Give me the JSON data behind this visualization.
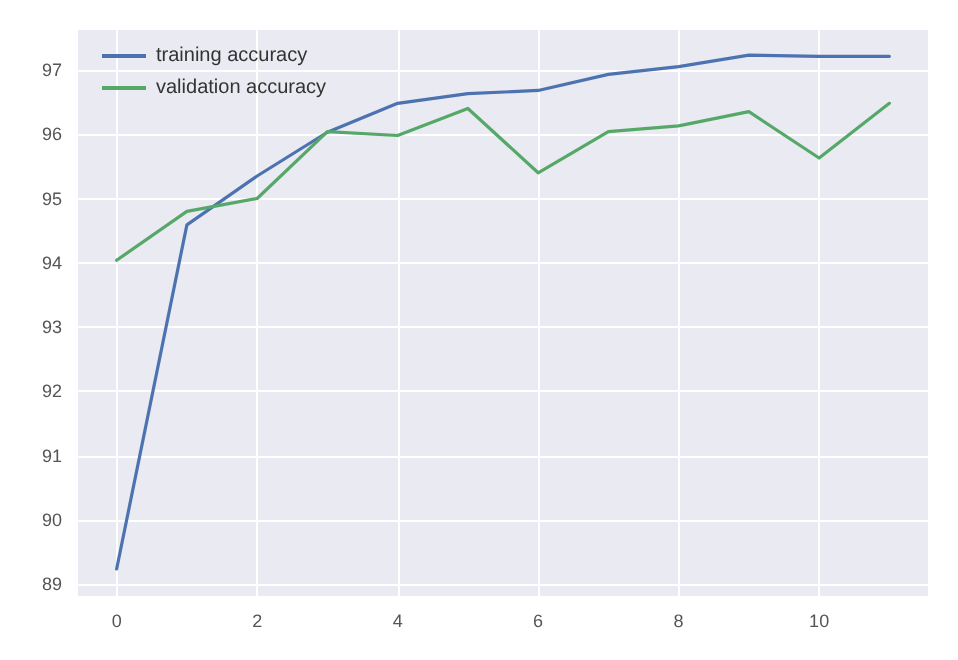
{
  "chart_data": {
    "type": "line",
    "x": [
      0,
      1,
      2,
      3,
      4,
      5,
      6,
      7,
      8,
      9,
      10,
      11
    ],
    "series": [
      {
        "name": "training accuracy",
        "color": "#4c72b0",
        "values": [
          89.24,
          94.59,
          95.35,
          96.03,
          96.48,
          96.63,
          96.68,
          96.93,
          97.05,
          97.23,
          97.21,
          97.21
        ]
      },
      {
        "name": "validation accuracy",
        "color": "#55a868",
        "values": [
          94.04,
          94.8,
          95.0,
          96.04,
          95.98,
          96.4,
          95.4,
          96.04,
          96.13,
          96.35,
          95.63,
          96.48
        ]
      }
    ],
    "xlim": [
      -0.55,
      11.55
    ],
    "xticks": [
      0,
      2,
      4,
      6,
      8,
      10
    ],
    "ylim": [
      88.82,
      97.62
    ],
    "yticks": [
      89,
      90,
      91,
      92,
      93,
      94,
      95,
      96,
      97
    ],
    "grid": true,
    "legend": "top left",
    "marker": "none",
    "line_style": "solid"
  }
}
